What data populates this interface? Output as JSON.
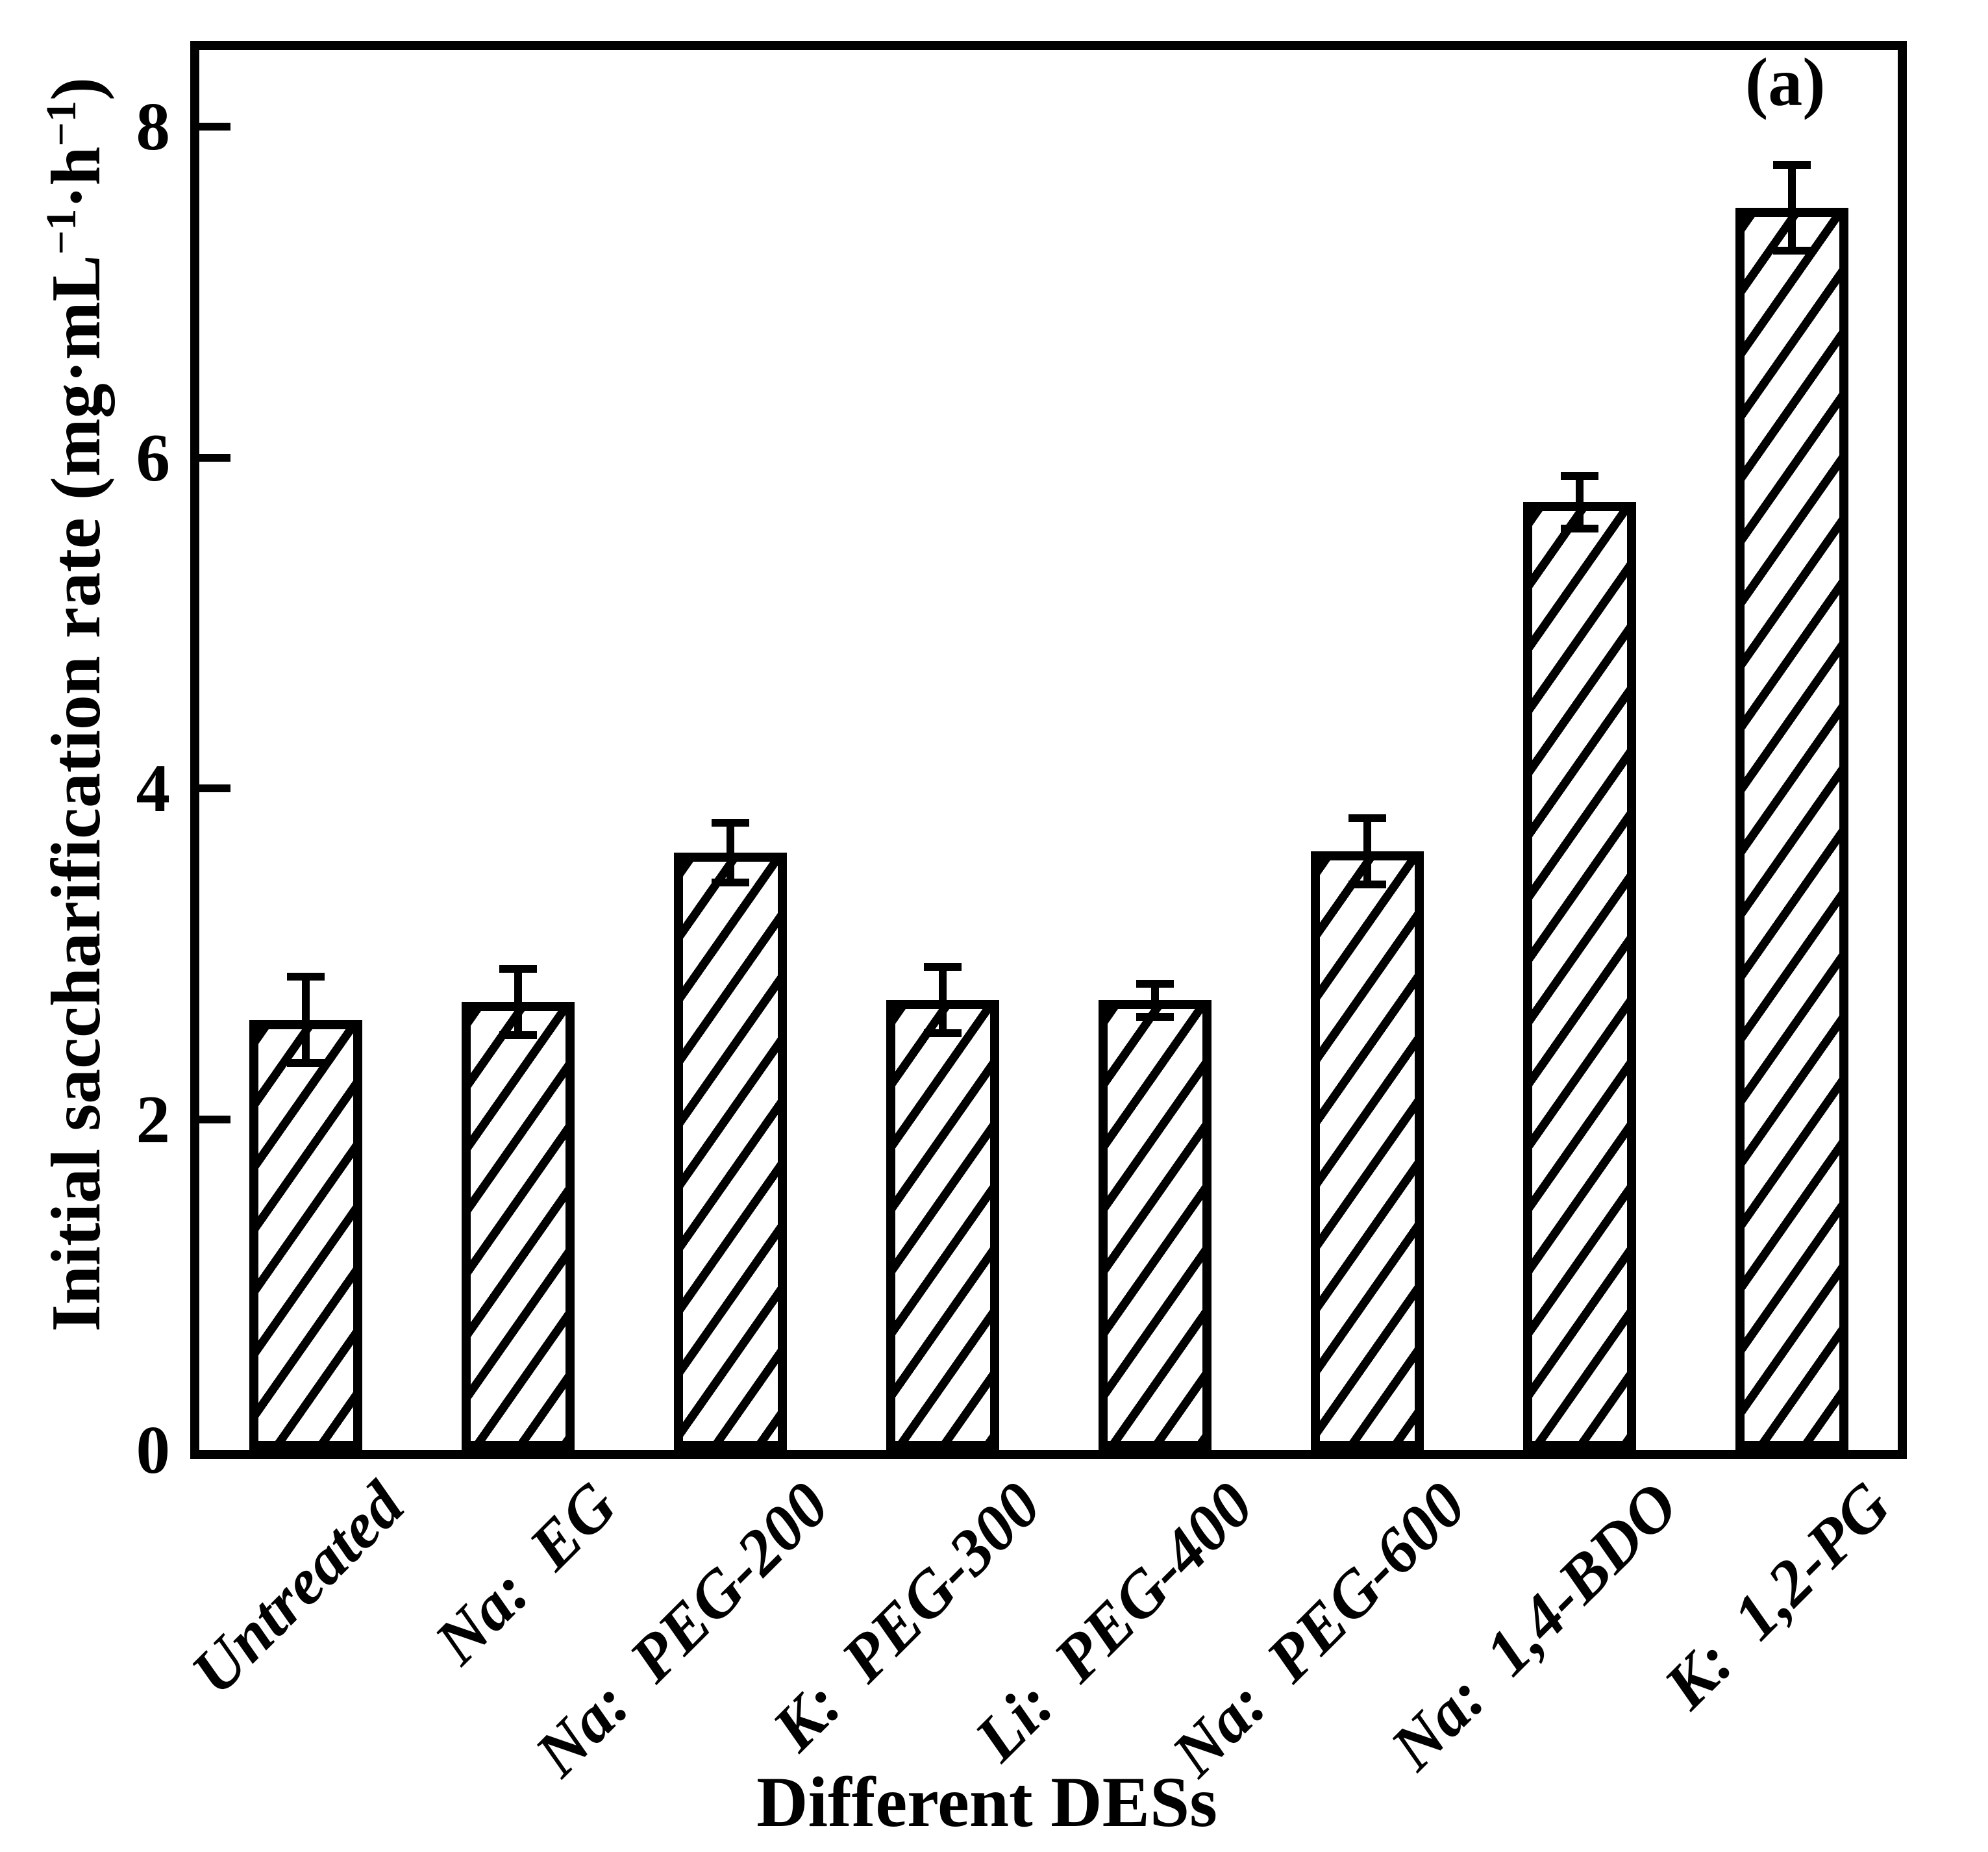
{
  "figure": {
    "panel_label": "(a)",
    "background_color": "#ffffff",
    "ink_color": "#000000"
  },
  "y_axis": {
    "label_full": "Initial saccharification rate (mg·mL⁻¹·h⁻¹)",
    "label_parts": {
      "prefix": "Initial saccharification rate (mg·mL",
      "sup1": "−1",
      "mid": "·h",
      "sup2": "−1",
      "suffix": ")"
    },
    "tick_labels": [
      "0",
      "2",
      "4",
      "6",
      "8"
    ]
  },
  "x_axis": {
    "title": "Different DESs"
  },
  "chart_data": {
    "type": "bar",
    "title": "",
    "categories": [
      "Untreated",
      "Na:  EG",
      "Na:  PEG-200",
      "K:  PEG-300",
      "Li:  PEG-400",
      "Na:  PEG-600",
      "Na:  1,4-BDO",
      "K:  1,2-PG"
    ],
    "values": [
      2.6,
      2.71,
      3.61,
      2.72,
      2.72,
      3.62,
      5.73,
      7.51
    ],
    "errors": [
      0.26,
      0.2,
      0.18,
      0.2,
      0.1,
      0.2,
      0.16,
      0.26
    ],
    "xlabel": "Different DESs",
    "ylabel": "Initial saccharification rate (mg·mL⁻¹·h⁻¹)",
    "ylim": [
      0,
      8.46
    ],
    "yticks": [
      0,
      2,
      4,
      6,
      8
    ],
    "grid": "off",
    "legend": "none",
    "bar_fill": "#ffffff",
    "bar_hatch": "/",
    "edge_color": "#000000",
    "error_bar_color": "#000000"
  }
}
